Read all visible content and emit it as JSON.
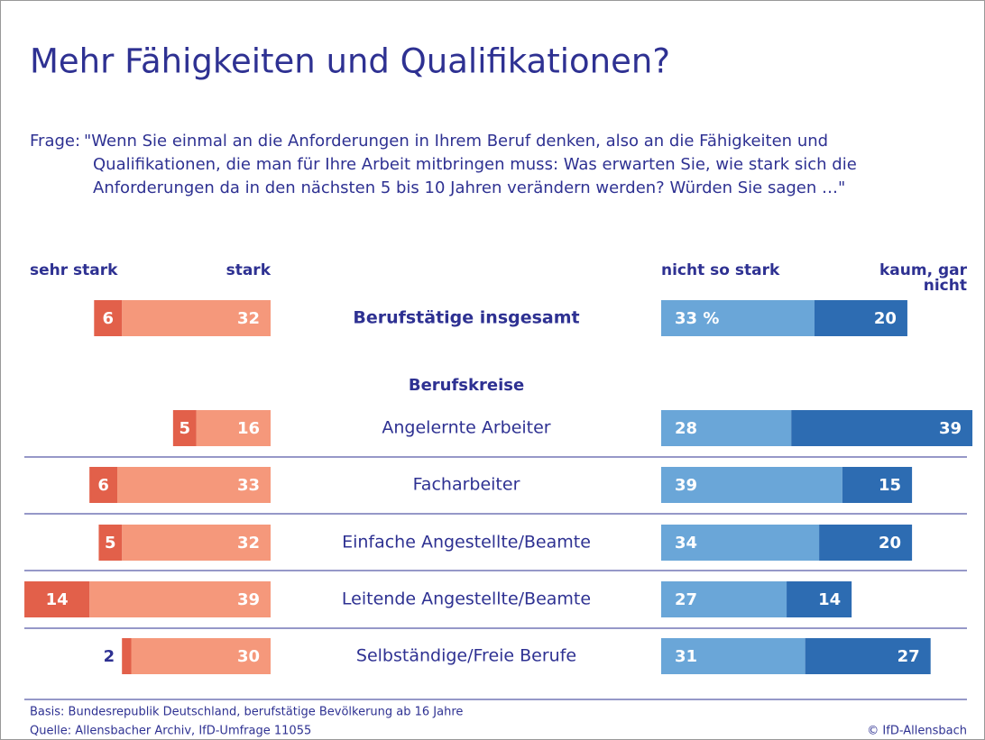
{
  "chart_data": {
    "type": "diverging_bar",
    "title": "Mehr Fähigkeiten und Qualifikationen?",
    "question_label": "Frage:",
    "question_lines": [
      "\"Wenn Sie einmal an die Anforderungen in Ihrem Beruf denken, also an die Fähigkeiten und",
      "Qualifikationen, die man für Ihre Arbeit mitbringen muss: Was erwarten Sie, wie stark sich die",
      "Anforderungen da in den nächsten 5 bis 10 Jahren verändern werden? Würden Sie sagen …\""
    ],
    "group_label": "Berufskreise",
    "categories": [
      "Berufstätige insgesamt",
      "Angelernte Arbeiter",
      "Facharbeiter",
      "Einfache Angestellte/Beamte",
      "Leitende Angestellte/Beamte",
      "Selbständige/Freie Berufe"
    ],
    "series": [
      {
        "name": "sehr stark",
        "color": "#e2604a",
        "values": [
          6,
          5,
          6,
          5,
          14,
          2
        ]
      },
      {
        "name": "stark",
        "color": "#f5987b",
        "values": [
          32,
          16,
          33,
          32,
          39,
          30
        ]
      },
      {
        "name": "nicht so stark",
        "color": "#6aa6d8",
        "values": [
          33,
          28,
          39,
          34,
          27,
          31
        ],
        "value_labels": [
          "33 %",
          "28",
          "39",
          "34",
          "27",
          "31"
        ]
      },
      {
        "name": "kaum, gar nicht",
        "color": "#2d6cb2",
        "values": [
          20,
          39,
          15,
          20,
          14,
          27
        ]
      }
    ],
    "footnotes": [
      "Basis: Bundesrepublik Deutschland, berufstätige Bevölkerung ab 16 Jahre",
      "Quelle: Allensbacher Archiv, IfD-Umfrage 11055"
    ],
    "copyright": "© IfD-Allensbach"
  }
}
